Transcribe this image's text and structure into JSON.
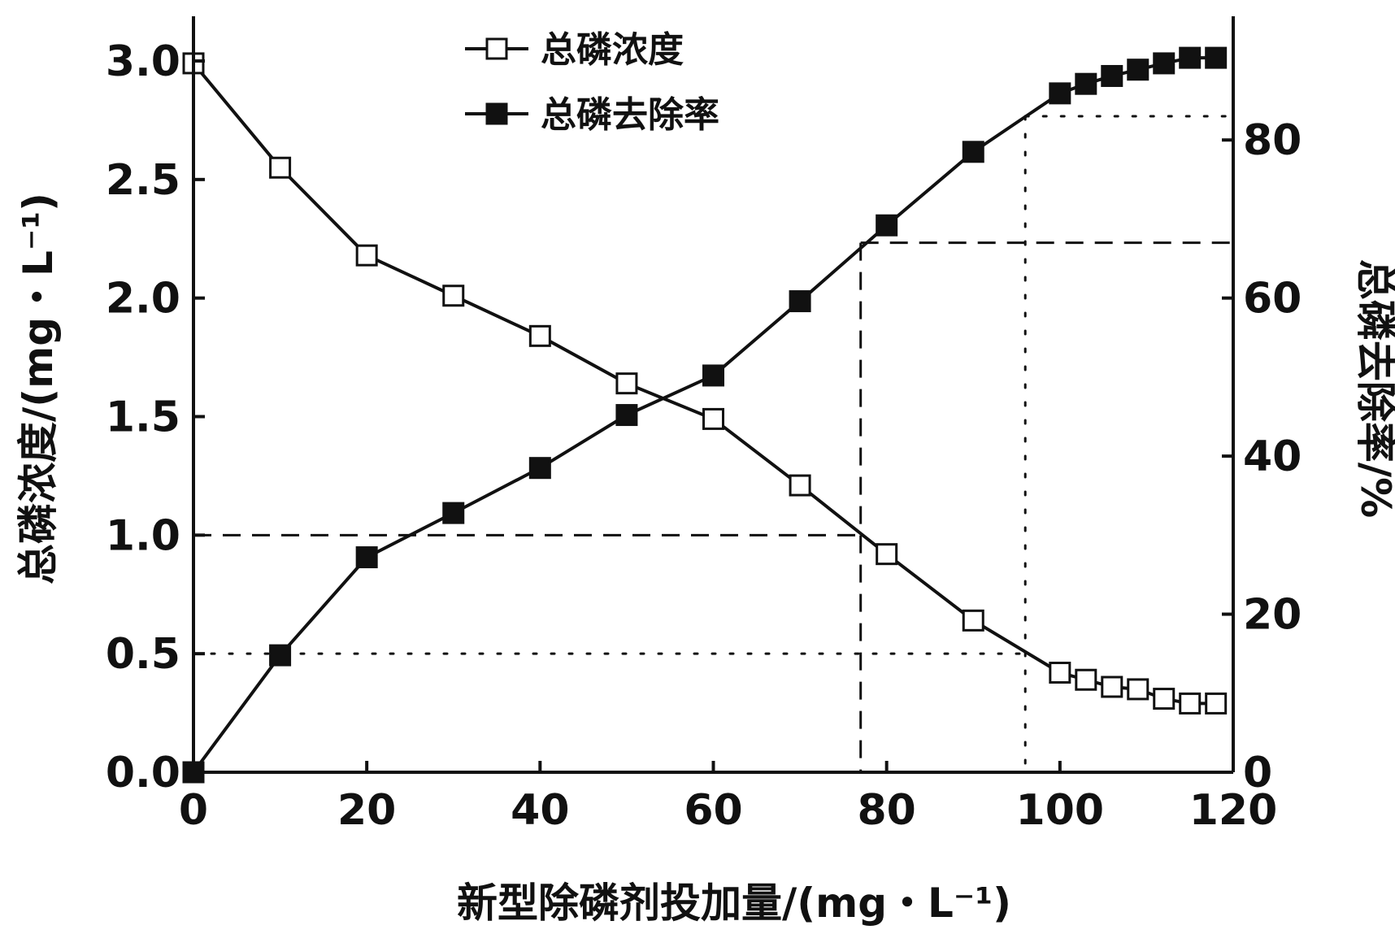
{
  "chart_data": {
    "type": "line",
    "xlabel": "新型除磷剂投加量/(mg・L⁻¹)",
    "ylabel_left": "总磷浓度/(mg・L⁻¹)",
    "ylabel_right": "总磷去除率/%",
    "xlim": [
      0,
      120
    ],
    "ylim_left": [
      0,
      3.0
    ],
    "ylim_right": [
      0,
      90
    ],
    "x_ticks": [
      0,
      20,
      40,
      60,
      80,
      100,
      120
    ],
    "x_tick_labels": [
      "0",
      "20",
      "40",
      "60",
      "80",
      "100",
      "120"
    ],
    "y_left_ticks": [
      0,
      0.5,
      1.0,
      1.5,
      2.0,
      2.5,
      3.0
    ],
    "y_left_tick_labels": [
      "0.0",
      "0.5",
      "1.0",
      "1.5",
      "2.0",
      "2.5",
      "3.0"
    ],
    "y_right_ticks": [
      0,
      20,
      40,
      60,
      80
    ],
    "y_right_tick_labels": [
      "0",
      "20",
      "40",
      "60",
      "80"
    ],
    "grid": false,
    "legend_position": "top-center",
    "series": [
      {
        "name": "总磷浓度",
        "axis": "left",
        "marker": "open-square",
        "x": [
          0,
          10,
          20,
          30,
          40,
          50,
          60,
          70,
          80,
          90,
          100,
          103,
          106,
          109,
          112,
          115,
          118
        ],
        "values": [
          2.99,
          2.55,
          2.18,
          2.01,
          1.84,
          1.64,
          1.49,
          1.21,
          0.92,
          0.64,
          0.42,
          0.39,
          0.36,
          0.35,
          0.31,
          0.29,
          0.29
        ]
      },
      {
        "name": "总磷去除率",
        "axis": "right",
        "marker": "filled-square",
        "x": [
          0,
          10,
          20,
          30,
          40,
          50,
          60,
          70,
          80,
          90,
          100,
          103,
          106,
          109,
          112,
          115,
          118
        ],
        "values": [
          0,
          14.8,
          27.2,
          32.8,
          38.5,
          45.2,
          50.2,
          59.6,
          69.2,
          78.5,
          85.9,
          87.1,
          88.1,
          88.9,
          89.7,
          90.4,
          90.4
        ]
      }
    ],
    "reference_lines": [
      {
        "style": "dashed",
        "axis": "left",
        "y": 1.0,
        "x": 77
      },
      {
        "style": "dashed",
        "axis": "right",
        "y": 67,
        "x": 77
      },
      {
        "style": "dotted",
        "axis": "left",
        "y": 0.5,
        "x": 96
      },
      {
        "style": "dotted",
        "axis": "right",
        "y": 83,
        "x": 96
      }
    ],
    "colors": {
      "line": "#111111",
      "marker_open_fill": "#ffffff",
      "marker_filled": "#111111"
    }
  }
}
